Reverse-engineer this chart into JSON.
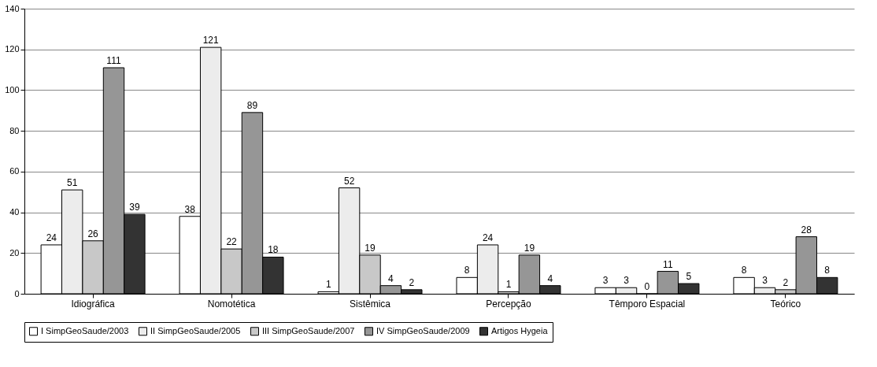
{
  "chart_data": {
    "type": "bar",
    "categories": [
      "Idiográfica",
      "Nomotética",
      "Sistêmica",
      "Percepção",
      "Têmporo Espacial",
      "Teórico"
    ],
    "series": [
      {
        "name": "I SimpGeoSaude/2003",
        "color": "#ffffff",
        "values": [
          24,
          38,
          1,
          8,
          3,
          8
        ]
      },
      {
        "name": "II SimpGeoSaude/2005",
        "color": "#ececec",
        "values": [
          51,
          121,
          52,
          24,
          3,
          3
        ]
      },
      {
        "name": "III SimpGeoSaude/2007",
        "color": "#c8c8c8",
        "values": [
          26,
          22,
          19,
          1,
          0,
          2
        ]
      },
      {
        "name": "IV SimpGeoSaude/2009",
        "color": "#969696",
        "values": [
          111,
          89,
          4,
          19,
          11,
          28
        ]
      },
      {
        "name": "Artigos Hygeia",
        "color": "#333333",
        "values": [
          39,
          18,
          2,
          4,
          5,
          8
        ]
      }
    ],
    "ylim": [
      0,
      140
    ],
    "yticks": [
      0,
      20,
      40,
      60,
      80,
      100,
      120,
      140
    ],
    "grid": "y",
    "legend": "bottom",
    "data_labels": true
  }
}
